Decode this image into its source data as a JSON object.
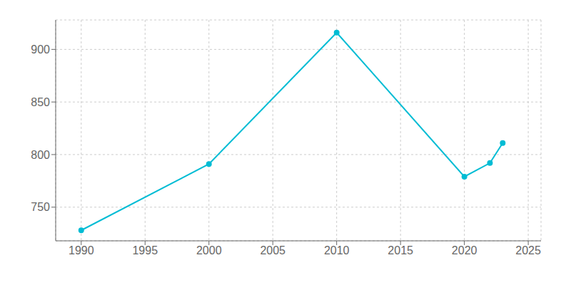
{
  "chart_data": {
    "type": "line",
    "x": [
      1990,
      2000,
      2010,
      2020,
      2022,
      2023
    ],
    "values": [
      728,
      791,
      916,
      779,
      792,
      811
    ],
    "color": "#00bcd4",
    "marker": "circle",
    "xlim": [
      1988,
      2026
    ],
    "ylim": [
      718,
      928
    ],
    "xticks": [
      1990,
      1995,
      2000,
      2005,
      2010,
      2015,
      2020,
      2025
    ],
    "yticks": [
      750,
      800,
      850,
      900
    ],
    "grid": true
  }
}
